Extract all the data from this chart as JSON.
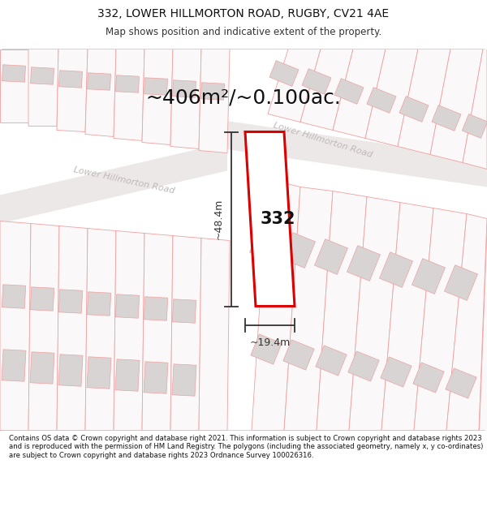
{
  "title": "332, LOWER HILLMORTON ROAD, RUGBY, CV21 4AE",
  "subtitle": "Map shows position and indicative extent of the property.",
  "area_label": "~406m²/~0.100ac.",
  "plot_number": "332",
  "dim_height": "~48.4m",
  "dim_width": "~19.4m",
  "road_label_left": "Lower Hillmorton Road",
  "road_label_right": "Lower Hillmorton Road",
  "footer": "Contains OS data © Crown copyright and database right 2021. This information is subject to Crown copyright and database rights 2023 and is reproduced with the permission of HM Land Registry. The polygons (including the associated geometry, namely x, y co-ordinates) are subject to Crown copyright and database rights 2023 Ordnance Survey 100026316.",
  "bg_color": "#ffffff",
  "map_bg": "#faf8f8",
  "plot_stroke": "#f0a0a0",
  "plot_fill": "#faf8f8",
  "building_fill": "#d8d4d4",
  "building_stroke": "#f0a0a0",
  "highlight_stroke": "#dd0000",
  "highlight_fill": "#ffffff",
  "dim_color": "#333333",
  "road_band_color": "#f0ecec",
  "road_text_color": "#c0b8b8",
  "area_text_color": "#111111"
}
